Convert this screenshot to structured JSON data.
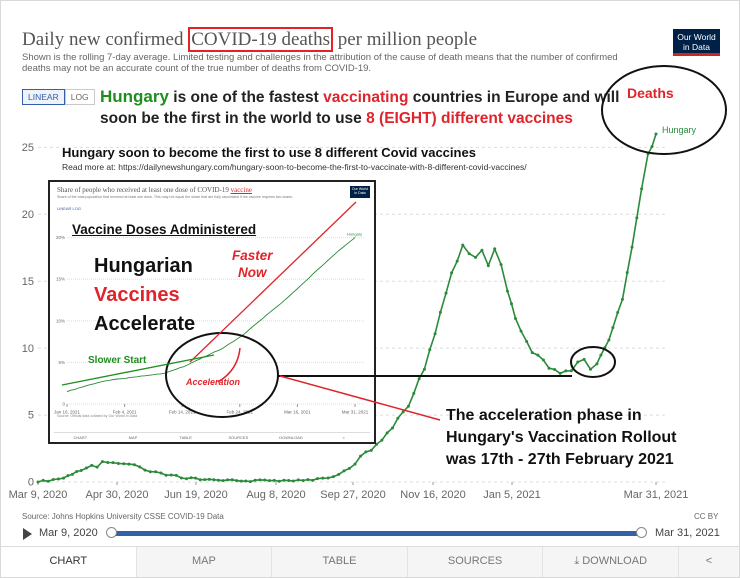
{
  "header": {
    "title_before": "Daily new confirmed ",
    "title_highlight": "COVID-19 deaths",
    "title_after": " per million people",
    "subtitle": "Shown is the rolling 7-day average. Limited testing and challenges in the attribution of the cause of death means that the number of confirmed deaths may not be an accurate count of the true number of deaths from COVID-19.",
    "logo_line1": "Our World",
    "logo_line2": "in Data",
    "scale_linear": "LINEAR",
    "scale_log": "LOG"
  },
  "annotations": {
    "line1_a": "Hungary",
    "line1_b": " is one of the fastest ",
    "line1_c": "vaccinating",
    "line1_d": " countries in Europe and will",
    "line2_a": "soon be the first in the world to use ",
    "line2_b": "8 (EIGHT) different vaccines",
    "headline": "Hungary soon to become the first to use 8 different Covid vaccines",
    "read_more": "Read more at: https://dailynewshungary.com/hungary-soon-to-become-the-first-to-vaccinate-with-8-different-covid-vaccines/",
    "deaths_label": "Deaths",
    "phase_line1": "The acceleration phase   in",
    "phase_line2": "Hungary's Vaccination Rollout",
    "phase_line3": "was 17th - 27th February 2021"
  },
  "inset": {
    "title_before": "Share of people who received at least one dose of COVID-19 ",
    "title_highlight": "vaccine",
    "subtitle": "Share of the total population that received at least one dose. This may not equal the share that are fully vaccinated if the vaccine requires two doses.",
    "logo": "Our World in Data",
    "toggle": "LINEAR  LOG",
    "vaccine_doses": "Vaccine Doses Administered",
    "hv_line1": "Hungarian",
    "hv_line2": "Vaccines",
    "hv_line3": "Accelerate",
    "faster_line1": "Faster",
    "faster_line2": "Now",
    "slower_start": "Slower Start",
    "acceleration": "Acceleration",
    "source": "Source: Official data collated by Our World in Data",
    "ccby": "CC BY",
    "tl_start": "Jan 16, 2021",
    "tl_end": "Mar 31, 2021",
    "tabs": [
      "CHART",
      "MAP",
      "TABLE",
      "SOURCES",
      "DOWNLOAD",
      "<"
    ]
  },
  "footer": {
    "source": "Source: Johns Hopkins University CSSE COVID-19 Data",
    "ccby": "CC BY",
    "timeline_start": "Mar 9, 2020",
    "timeline_end": "Mar 31, 2021",
    "tabs": [
      "CHART",
      "MAP",
      "TABLE",
      "SOURCES",
      "DOWNLOAD"
    ],
    "download_icon": "download-icon",
    "share_icon": "share-icon"
  },
  "colors": {
    "series": "#2a8a3a",
    "accent_red": "#e0242b",
    "accent_green": "#1e8f1e",
    "timeline": "#3360a9",
    "logo_bg": "#002147"
  },
  "chart_data": [
    {
      "type": "line",
      "ylim": [
        0,
        26
      ],
      "yticks": [
        0,
        5,
        10,
        15,
        20,
        25
      ],
      "xlim": [
        "2020-03-09",
        "2021-03-31"
      ],
      "xticks": [
        "Mar 9, 2020",
        "Apr 30, 2020",
        "Jun 19, 2020",
        "Aug 8, 2020",
        "Sep 27, 2020",
        "Nov 16, 2020",
        "Jan 5, 2021",
        "Mar 31, 2021"
      ],
      "series": [
        {
          "name": "Hungary",
          "x": [
            "2020-03-09",
            "2020-03-25",
            "2020-04-05",
            "2020-04-15",
            "2020-04-25",
            "2020-05-05",
            "2020-05-15",
            "2020-05-25",
            "2020-06-10",
            "2020-06-30",
            "2020-07-20",
            "2020-08-10",
            "2020-08-31",
            "2020-09-10",
            "2020-09-20",
            "2020-09-27",
            "2020-10-07",
            "2020-10-17",
            "2020-10-27",
            "2020-11-06",
            "2020-11-16",
            "2020-11-23",
            "2020-11-30",
            "2020-12-04",
            "2020-12-08",
            "2020-12-12",
            "2020-12-16",
            "2020-12-20",
            "2020-12-24",
            "2020-12-28",
            "2021-01-02",
            "2021-01-09",
            "2021-01-16",
            "2021-01-23",
            "2021-01-30",
            "2021-02-06",
            "2021-02-10",
            "2021-02-14",
            "2021-02-18",
            "2021-02-22",
            "2021-02-27",
            "2021-03-04",
            "2021-03-10",
            "2021-03-16",
            "2021-03-22",
            "2021-03-26",
            "2021-03-31"
          ],
          "y": [
            0,
            0.3,
            0.9,
            1.3,
            1.5,
            1.4,
            1.1,
            0.6,
            0.3,
            0.1,
            0.1,
            0.1,
            0.2,
            0.4,
            1.0,
            1.7,
            2.8,
            4.1,
            5.8,
            8.5,
            12.5,
            15.5,
            17.8,
            17.2,
            16.6,
            17.4,
            16.4,
            17.6,
            16.2,
            14.2,
            12.0,
            10.4,
            9.4,
            8.6,
            8.3,
            8.1,
            8.8,
            9.0,
            8.5,
            9.0,
            9.8,
            11.5,
            13.8,
            17.5,
            22.0,
            24.6,
            26.0
          ]
        }
      ]
    },
    {
      "type": "line",
      "title": "Share of people who received at least one dose of COVID-19 vaccine",
      "ylim": [
        0,
        22
      ],
      "yticks": [
        "0",
        "5%",
        "10%",
        "15%",
        "20%"
      ],
      "xlim": [
        "2021-01-16",
        "2021-03-31"
      ],
      "xticks": [
        "Jan 16, 2021",
        "Feb 4, 2021",
        "Feb 14, 2021",
        "Feb 24, 2021",
        "Mar 16, 2021",
        "Mar 31, 2021"
      ],
      "series": [
        {
          "name": "Hungary",
          "x": [
            "2021-01-16",
            "2021-01-21",
            "2021-01-26",
            "2021-01-31",
            "2021-02-05",
            "2021-02-10",
            "2021-02-15",
            "2021-02-20",
            "2021-02-25",
            "2021-03-02",
            "2021-03-07",
            "2021-03-12",
            "2021-03-17",
            "2021-03-22",
            "2021-03-27",
            "2021-03-31"
          ],
          "y": [
            1.5,
            2.2,
            2.8,
            3.1,
            3.4,
            3.7,
            4.5,
            5.6,
            6.7,
            8.2,
            10.2,
            12.1,
            14.2,
            16.4,
            18.5,
            20.0
          ]
        }
      ]
    }
  ]
}
